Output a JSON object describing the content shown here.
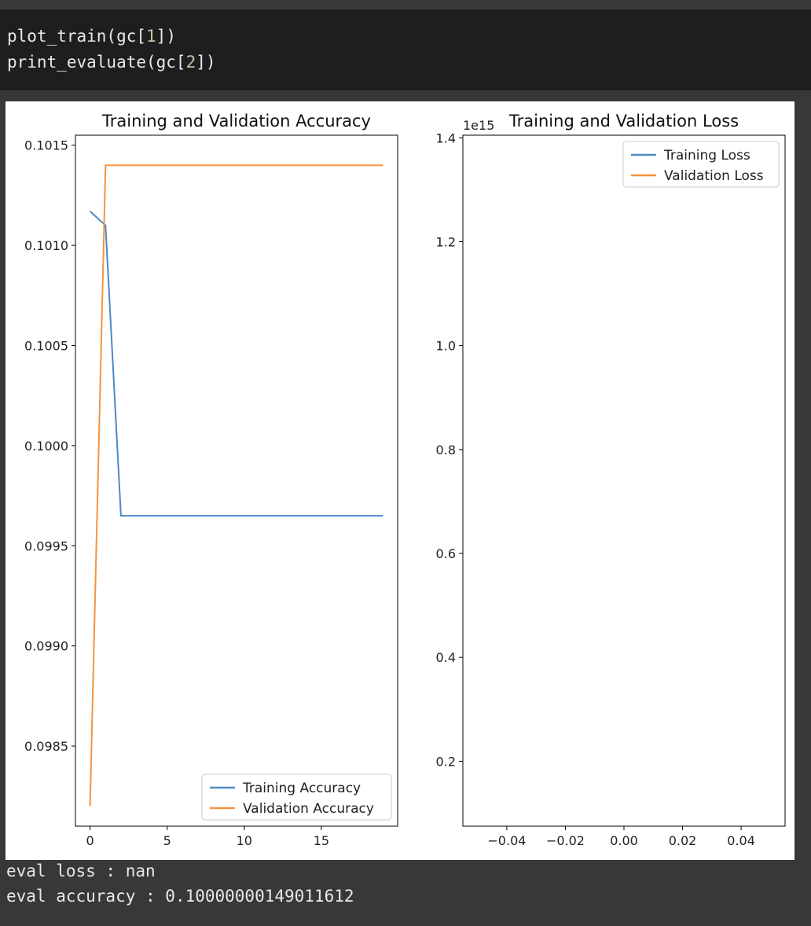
{
  "code": {
    "line1": {
      "prefix": "plot_train(gc[",
      "index": "1",
      "suffix": "])"
    },
    "line2": {
      "prefix": "print_evaluate(gc[",
      "index": "2",
      "suffix": "])"
    }
  },
  "output": {
    "eval_loss": "eval loss : nan",
    "eval_accuracy": "eval accuracy : 0.10000000149011612"
  },
  "colors": {
    "training": "#4c8ac6",
    "validation": "#f5933f"
  },
  "chart_data": [
    {
      "type": "line",
      "title": "Training and Validation Accuracy",
      "xlim": [
        -0.95,
        19.95
      ],
      "ylim": [
        0.0981,
        0.10155
      ],
      "xticks": [
        0,
        5,
        10,
        15
      ],
      "xtick_labels": [
        "0",
        "5",
        "10",
        "15"
      ],
      "yticks": [
        0.0985,
        0.099,
        0.0995,
        0.1,
        0.1005,
        0.101,
        0.1015
      ],
      "ytick_labels": [
        "0.0985",
        "0.0990",
        "0.0995",
        "0.1000",
        "0.1005",
        "0.1010",
        "0.1015"
      ],
      "legend_position": "lower-right",
      "series": [
        {
          "name": "Training Accuracy",
          "x": [
            0,
            1,
            2,
            3,
            4,
            5,
            6,
            7,
            8,
            9,
            10,
            11,
            12,
            13,
            14,
            15,
            16,
            17,
            18,
            19
          ],
          "y": [
            0.10117,
            0.1011,
            0.09965,
            0.09965,
            0.09965,
            0.09965,
            0.09965,
            0.09965,
            0.09965,
            0.09965,
            0.09965,
            0.09965,
            0.09965,
            0.09965,
            0.09965,
            0.09965,
            0.09965,
            0.09965,
            0.09965,
            0.09965
          ]
        },
        {
          "name": "Validation Accuracy",
          "x": [
            0,
            1,
            2,
            3,
            4,
            5,
            6,
            7,
            8,
            9,
            10,
            11,
            12,
            13,
            14,
            15,
            16,
            17,
            18,
            19
          ],
          "y": [
            0.0982,
            0.1014,
            0.1014,
            0.1014,
            0.1014,
            0.1014,
            0.1014,
            0.1014,
            0.1014,
            0.1014,
            0.1014,
            0.1014,
            0.1014,
            0.1014,
            0.1014,
            0.1014,
            0.1014,
            0.1014,
            0.1014,
            0.1014
          ]
        }
      ]
    },
    {
      "type": "line",
      "title": "Training and Validation Loss",
      "offset_label": "1e15",
      "xlim": [
        -0.055,
        0.055
      ],
      "ylim": [
        0.075,
        1.405
      ],
      "xticks": [
        -0.04,
        -0.02,
        0.0,
        0.02,
        0.04
      ],
      "xtick_labels": [
        "−0.04",
        "−0.02",
        "0.00",
        "0.02",
        "0.04"
      ],
      "yticks": [
        0.2,
        0.4,
        0.6,
        0.8,
        1.0,
        1.2,
        1.4
      ],
      "ytick_labels": [
        "0.2",
        "0.4",
        "0.6",
        "0.8",
        "1.0",
        "1.2",
        "1.4"
      ],
      "legend_position": "upper-right",
      "series": [
        {
          "name": "Training Loss",
          "x": [],
          "y": []
        },
        {
          "name": "Validation Loss",
          "x": [],
          "y": []
        }
      ]
    }
  ]
}
